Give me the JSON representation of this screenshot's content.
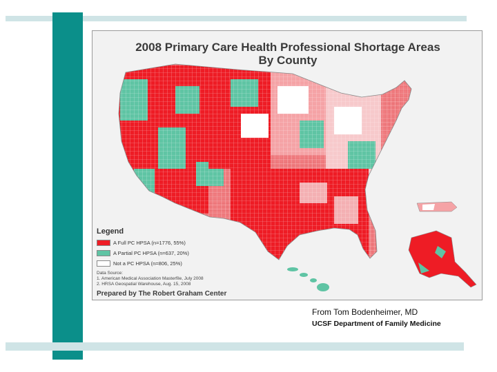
{
  "colors": {
    "accent_teal": "#0b8f8a",
    "stripe": "#cfe4e6",
    "full_hpsa": "#ee1c25",
    "partial_hpsa": "#5fc4a4",
    "not_hpsa": "#ffffff"
  },
  "map": {
    "title": "2008 Primary Care Health Professional Shortage Areas\nBy County",
    "legend": {
      "title": "Legend",
      "items": [
        {
          "label": "A Full PC HPSA (n=1776, 55%)",
          "color": "#ee1c25"
        },
        {
          "label": "A Partial PC HPSA (n=637, 20%)",
          "color": "#5fc4a4"
        },
        {
          "label": "Not a PC HPSA (n=806, 25%)",
          "color": "#ffffff"
        }
      ]
    },
    "source": {
      "heading": "Data Source:",
      "lines": [
        "1. American Medical Association Masterfile, July 2008",
        "2. HRSA Geospatial Warehouse, Aug. 15, 2008"
      ]
    },
    "prepared_by": "Prepared by The Robert Graham Center"
  },
  "credit": {
    "line1": "From Tom Bodenheimer, MD",
    "line2": "UCSF Department of Family Medicine"
  }
}
